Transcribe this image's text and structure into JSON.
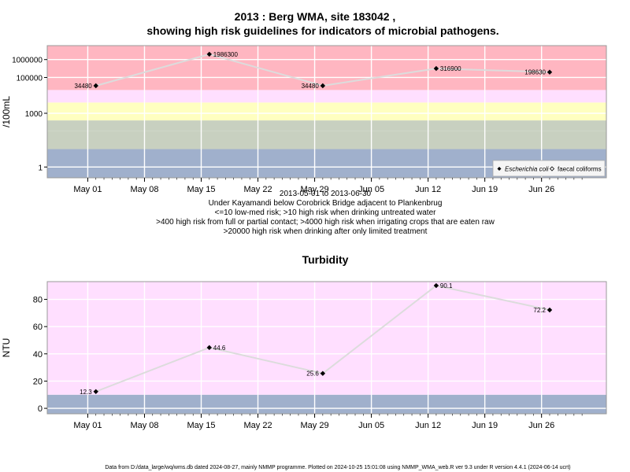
{
  "title": {
    "line1": "2013 : Berg WMA, site 183042 ,",
    "line2": "showing high risk guidelines for indicators of microbial pathogens."
  },
  "subtitle_lines": [
    "2013-05-01 to 2013-06-30",
    "Under Kayamandi below Corobrick Bridge adjacent to Plankenbrug",
    "<=10 low-med risk; >10 high risk when drinking untreated water",
    ">400 high risk from full or partial contact; >4000 high risk when irrigating crops that are eaten raw",
    ">20000 high risk when drinking after only limited treatment"
  ],
  "footer": "Data from D:/data_large/wq/wms.db dated 2024-08-27, mainly NMMP programme. Plotted on 2024-10-25 15:01:08 using NMMP_WMA_web.R ver 9.3 under R version 4.4.1 (2024-06-14 ucrt)",
  "x_ticks": [
    "May 01",
    "May 08",
    "May 15",
    "May 22",
    "May 29",
    "Jun 05",
    "Jun 12",
    "Jun 19",
    "Jun 26"
  ],
  "colors": {
    "high": "#ffb6c1",
    "pink_light": "#ffdfff",
    "yellow": "#ffffc0",
    "green_grey": "#c8d0c0",
    "blue_grey": "#a0b0cc",
    "line": "#dcdcdc",
    "grid": "#ffffff",
    "point": "#000000"
  },
  "chart_data": [
    {
      "type": "line",
      "ylabel": "/100mL",
      "yscale": "log10",
      "ylim": [
        0.25,
        6000000
      ],
      "y_ticks": [
        "1",
        "1000",
        "100000",
        "1000000"
      ],
      "xlim": [
        "2013-04-26",
        "2013-07-04"
      ],
      "bands": [
        {
          "from": 0.25,
          "to": 10,
          "color": "#a0b0cc"
        },
        {
          "from": 10,
          "to": 100,
          "color": "#c8d0c0"
        },
        {
          "from": 100,
          "to": 400,
          "color": "#c8d0c0"
        },
        {
          "from": 400,
          "to": 4000,
          "color": "#ffffc0"
        },
        {
          "from": 4000,
          "to": 20000,
          "color": "#ffdfff"
        },
        {
          "from": 20000,
          "to": 6000000,
          "color": "#ffb6c1"
        }
      ],
      "legend": {
        "position": "bottom-right",
        "items": [
          "Escherichia coli",
          "faecal coliforms"
        ]
      },
      "series": [
        {
          "name": "Escherichia coli",
          "points": [
            {
              "x": "2013-05-02",
              "y": 34480,
              "label": "34480"
            },
            {
              "x": "2013-05-16",
              "y": 1986300,
              "label": "1986300"
            },
            {
              "x": "2013-05-30",
              "y": 34480,
              "label": "34480"
            },
            {
              "x": "2013-06-13",
              "y": 316900,
              "label": "316900"
            },
            {
              "x": "2013-06-27",
              "y": 198630,
              "label": "198630"
            }
          ]
        }
      ]
    },
    {
      "type": "line",
      "title": "Turbidity",
      "ylabel": "NTU",
      "ylim": [
        -4,
        93
      ],
      "y_ticks": [
        "0",
        "20",
        "40",
        "60",
        "80"
      ],
      "xlim": [
        "2013-04-26",
        "2013-07-04"
      ],
      "bands": [
        {
          "from": -4,
          "to": 10,
          "color": "#a0b0cc"
        },
        {
          "from": 10,
          "to": 93,
          "color": "#ffdfff"
        }
      ],
      "series": [
        {
          "points": [
            {
              "x": "2013-05-02",
              "y": 12.3,
              "label": "12.3"
            },
            {
              "x": "2013-05-16",
              "y": 44.6,
              "label": "44.6"
            },
            {
              "x": "2013-05-30",
              "y": 25.6,
              "label": "25.6"
            },
            {
              "x": "2013-06-13",
              "y": 90.1,
              "label": "90.1"
            },
            {
              "x": "2013-06-27",
              "y": 72.2,
              "label": "72.2"
            }
          ]
        }
      ]
    }
  ]
}
